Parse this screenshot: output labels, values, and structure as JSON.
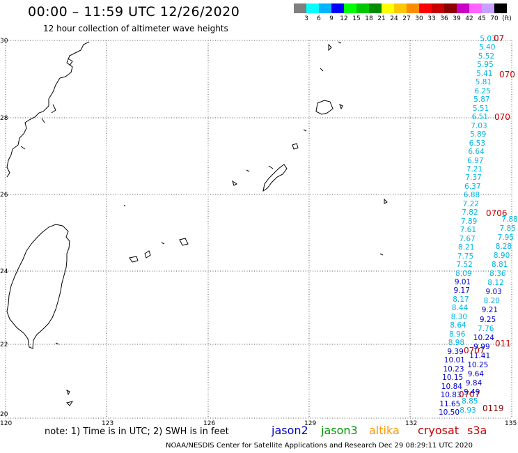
{
  "header": {
    "title": "00:00 – 11:59 UTC 12/26/2020",
    "subtitle": "12 hour collection of altimeter wave heights"
  },
  "colorbar": {
    "colors": [
      "#7f7f7f",
      "#00ffff",
      "#00b4ff",
      "#0000ff",
      "#00ff00",
      "#00c800",
      "#008c00",
      "#ffff00",
      "#ffc800",
      "#ff8c00",
      "#ff0000",
      "#c80000",
      "#8c0000",
      "#c800c8",
      "#ff64ff",
      "#c8a0ff",
      "#000000"
    ],
    "labels": [
      "3",
      "6",
      "9",
      "12",
      "15",
      "18",
      "21",
      "24",
      "27",
      "30",
      "33",
      "36",
      "39",
      "42",
      "45",
      "70",
      "(ft)"
    ]
  },
  "axes": {
    "lat_labels": [
      "30",
      "28",
      "26",
      "24",
      "22",
      "20"
    ],
    "lon_labels": [
      "120",
      "123",
      "126",
      "129",
      "132",
      "135"
    ]
  },
  "legend": {
    "note": "note: 1) Time is in UTC; 2) SWH is in feet",
    "items": [
      {
        "name": "jason2",
        "color": "#0000c8"
      },
      {
        "name": "jason3",
        "color": "#009600"
      },
      {
        "name": "altika",
        "color": "#ff9600"
      },
      {
        "name": "cryosat",
        "color": "#c80000"
      },
      {
        "name": "s3a",
        "color": "#c80000"
      }
    ]
  },
  "footer": {
    "credit": "NOAA/NESDIS Center for Satellite Applications and Research    Dec 29 08:29:11 UTC 2020"
  },
  "wave_heights": {
    "track_main": [
      "5.03",
      "5.40",
      "5.52",
      "5.95",
      "5.41",
      "5.81",
      "6.25",
      "5.87",
      "5.51",
      "6.51",
      "7.03",
      "5.89",
      "6.53",
      "6.64",
      "6.97",
      "7.21",
      "7.37",
      "6.37",
      "6.88",
      "7.22",
      "7.82",
      "7.89",
      "7.61",
      "7.67",
      "8.21",
      "7.75",
      "7.52",
      "8.09",
      "9.01",
      "9.17",
      "8.17",
      "8.44",
      "8.30",
      "8.64",
      "8.96",
      "8.98",
      "9.39",
      "10.01",
      "10.23",
      "10.15",
      "10.84",
      "10.83",
      "11.65",
      "10.50"
    ],
    "track_main_colors": [
      "cyan",
      "cyan",
      "cyan",
      "cyan",
      "cyan",
      "cyan",
      "cyan",
      "cyan",
      "cyan",
      "cyan",
      "cyan",
      "cyan",
      "cyan",
      "cyan",
      "cyan",
      "cyan",
      "cyan",
      "cyan",
      "cyan",
      "cyan",
      "cyan",
      "cyan",
      "cyan",
      "cyan",
      "cyan",
      "cyan",
      "cyan",
      "cyan",
      "blue",
      "blue",
      "cyan",
      "cyan",
      "cyan",
      "cyan",
      "cyan",
      "cyan",
      "blue",
      "blue",
      "blue",
      "blue",
      "blue",
      "blue",
      "blue",
      "blue"
    ],
    "track_second": [
      "7.88",
      "7.85",
      "7.95",
      "8.28",
      "8.90",
      "8.81",
      "8.36",
      "8.12",
      "9.03",
      "8.20",
      "9.21",
      "9.25",
      "7.76",
      "10.24",
      "9.99",
      "11.41",
      "10.25",
      "9.64",
      "9.84",
      "9.49",
      "8.85",
      "8.93"
    ],
    "track_second_colors": [
      "cyan",
      "cyan",
      "cyan",
      "cyan",
      "cyan",
      "cyan",
      "cyan",
      "cyan",
      "blue",
      "cyan",
      "blue",
      "blue",
      "cyan",
      "blue",
      "blue",
      "blue",
      "blue",
      "blue",
      "blue",
      "blue",
      "cyan",
      "cyan"
    ],
    "cryosat_labels": [
      "07",
      "070",
      "070",
      "0706",
      "011",
      "0707",
      "0707",
      "0119"
    ]
  }
}
